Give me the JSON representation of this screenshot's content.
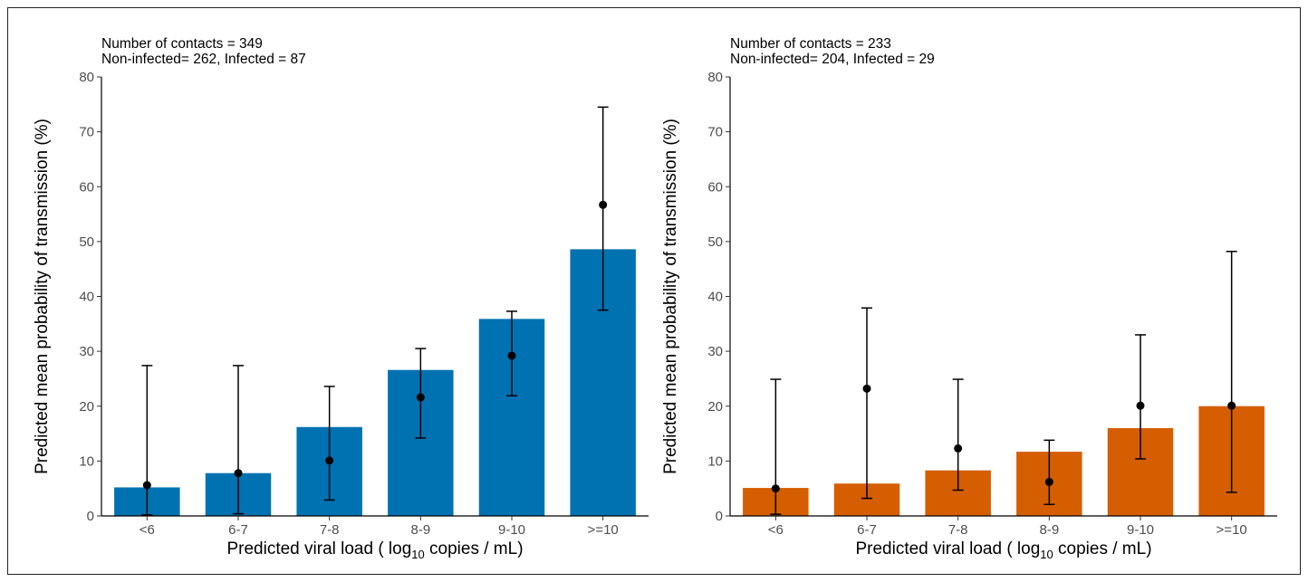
{
  "chart_data": [
    {
      "type": "bar",
      "annotation": [
        "Number of contacts = 349",
        "Non-infected= 262, Infected = 87"
      ],
      "xlabel": {
        "prefix": "Predicted viral load ( log",
        "sub": "10",
        "suffix": " copies / mL)"
      },
      "ylabel": "Predicted mean probability of transmission  (%)",
      "ylim": [
        0,
        80
      ],
      "yticks": [
        0,
        10,
        20,
        30,
        40,
        50,
        60,
        70,
        80
      ],
      "categories": [
        "<6",
        "6-7",
        "7-8",
        "8-9",
        "9-10",
        ">=10"
      ],
      "values": [
        5.2,
        7.8,
        16.2,
        26.6,
        35.9,
        48.6
      ],
      "points": [
        5.6,
        7.8,
        10.1,
        21.6,
        29.2,
        56.7
      ],
      "error_low": [
        0.2,
        0.4,
        2.9,
        14.2,
        21.9,
        37.5
      ],
      "error_high": [
        27.4,
        27.4,
        23.6,
        30.5,
        37.3,
        74.5
      ],
      "bar_color": "#0072B2",
      "grid": false
    },
    {
      "type": "bar",
      "annotation": [
        "Number of contacts = 233",
        "Non-infected= 204, Infected = 29"
      ],
      "xlabel": {
        "prefix": "Predicted viral load ( log",
        "sub": "10",
        "suffix": " copies / mL)"
      },
      "ylabel": "Predicted mean probability of transmission  (%)",
      "ylim": [
        0,
        80
      ],
      "yticks": [
        0,
        10,
        20,
        30,
        40,
        50,
        60,
        70,
        80
      ],
      "categories": [
        "<6",
        "6-7",
        "7-8",
        "8-9",
        "9-10",
        ">=10"
      ],
      "values": [
        5.1,
        5.9,
        8.3,
        11.7,
        16.0,
        20.0
      ],
      "points": [
        5.0,
        23.2,
        12.3,
        6.2,
        20.1,
        20.1
      ],
      "error_low": [
        0.3,
        3.2,
        4.7,
        2.1,
        10.4,
        4.3
      ],
      "error_high": [
        24.9,
        37.9,
        24.9,
        13.8,
        33.0,
        48.2
      ],
      "bar_color": "#D55E00",
      "grid": false
    }
  ]
}
